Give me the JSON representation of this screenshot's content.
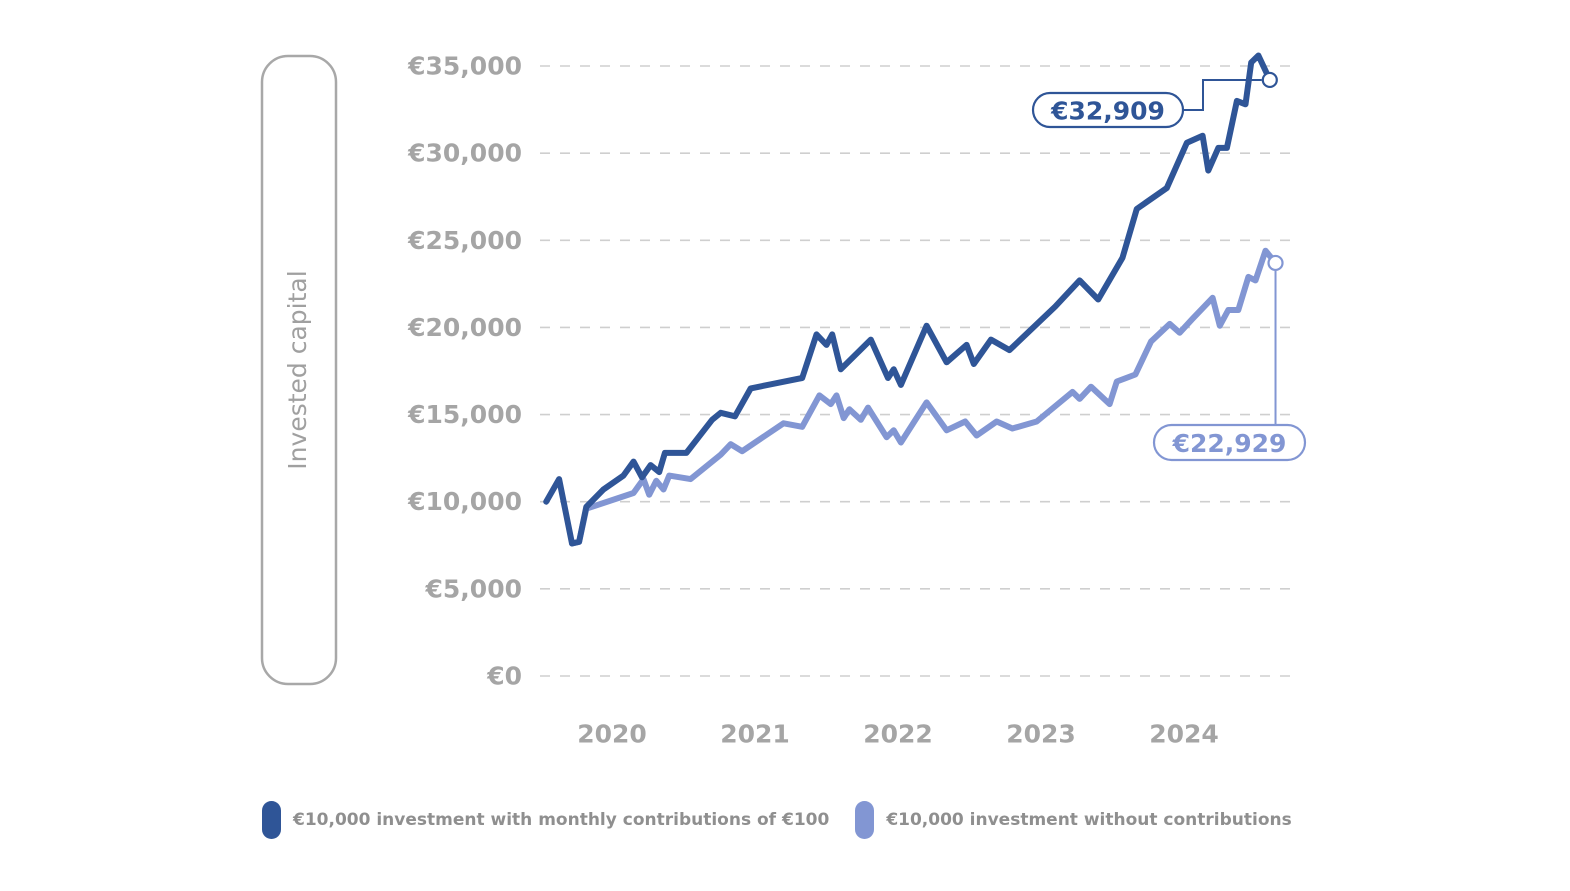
{
  "chart_data": {
    "type": "line",
    "ylabel": "Invested capital",
    "xlabel": "",
    "ylim": [
      0,
      35000
    ],
    "xlim": [
      2019.5,
      2024.75
    ],
    "y_ticks": [
      0,
      5000,
      10000,
      15000,
      20000,
      25000,
      30000,
      35000
    ],
    "y_tick_labels": [
      "€0",
      "€5,000",
      "€10,000",
      "€15,000",
      "€20,000",
      "€25,000",
      "€30,000",
      "€35,000"
    ],
    "x_ticks": [
      2020,
      2021,
      2022,
      2023,
      2024
    ],
    "x_tick_labels": [
      "2020",
      "2021",
      "2022",
      "2023",
      "2024"
    ],
    "grid": "horizontal dashed",
    "legend_position": "bottom",
    "series": [
      {
        "name": "€10,000 investment with monthly contributions of €100",
        "color": "#2f5597",
        "end_label": "€32,909",
        "points": [
          [
            2019.54,
            10000
          ],
          [
            2019.63,
            11300
          ],
          [
            2019.72,
            7600
          ],
          [
            2019.77,
            7700
          ],
          [
            2019.82,
            9700
          ],
          [
            2019.94,
            10700
          ],
          [
            2020.08,
            11500
          ],
          [
            2020.15,
            12300
          ],
          [
            2020.21,
            11400
          ],
          [
            2020.27,
            12100
          ],
          [
            2020.33,
            11700
          ],
          [
            2020.37,
            12800
          ],
          [
            2020.52,
            12800
          ],
          [
            2020.7,
            14700
          ],
          [
            2020.76,
            15100
          ],
          [
            2020.86,
            14900
          ],
          [
            2020.97,
            16500
          ],
          [
            2021.33,
            17100
          ],
          [
            2021.43,
            19600
          ],
          [
            2021.5,
            19000
          ],
          [
            2021.54,
            19600
          ],
          [
            2021.6,
            17600
          ],
          [
            2021.81,
            19300
          ],
          [
            2021.93,
            17100
          ],
          [
            2021.97,
            17600
          ],
          [
            2022.02,
            16700
          ],
          [
            2022.2,
            20100
          ],
          [
            2022.34,
            18000
          ],
          [
            2022.48,
            19000
          ],
          [
            2022.53,
            17900
          ],
          [
            2022.65,
            19300
          ],
          [
            2022.78,
            18700
          ],
          [
            2023.1,
            21200
          ],
          [
            2023.27,
            22700
          ],
          [
            2023.4,
            21600
          ],
          [
            2023.57,
            24000
          ],
          [
            2023.67,
            26800
          ],
          [
            2023.88,
            28000
          ],
          [
            2024.02,
            30600
          ],
          [
            2024.13,
            31000
          ],
          [
            2024.17,
            29000
          ],
          [
            2024.24,
            30300
          ],
          [
            2024.3,
            30300
          ],
          [
            2024.37,
            33000
          ],
          [
            2024.43,
            32800
          ],
          [
            2024.47,
            35200
          ],
          [
            2024.52,
            35600
          ],
          [
            2024.6,
            34200
          ]
        ]
      },
      {
        "name": "€10,000 investment without contributions",
        "color": "#8296d3",
        "end_label": "€22,929",
        "points": [
          [
            2019.72,
            7600
          ],
          [
            2019.77,
            7700
          ],
          [
            2019.82,
            9600
          ],
          [
            2020.15,
            10500
          ],
          [
            2020.22,
            11300
          ],
          [
            2020.26,
            10400
          ],
          [
            2020.31,
            11200
          ],
          [
            2020.36,
            10700
          ],
          [
            2020.4,
            11500
          ],
          [
            2020.55,
            11300
          ],
          [
            2020.76,
            12700
          ],
          [
            2020.83,
            13300
          ],
          [
            2020.91,
            12900
          ],
          [
            2021.2,
            14500
          ],
          [
            2021.33,
            14300
          ],
          [
            2021.45,
            16100
          ],
          [
            2021.53,
            15600
          ],
          [
            2021.57,
            16100
          ],
          [
            2021.62,
            14800
          ],
          [
            2021.66,
            15300
          ],
          [
            2021.74,
            14700
          ],
          [
            2021.79,
            15400
          ],
          [
            2021.92,
            13700
          ],
          [
            2021.97,
            14100
          ],
          [
            2022.02,
            13400
          ],
          [
            2022.2,
            15700
          ],
          [
            2022.34,
            14100
          ],
          [
            2022.47,
            14600
          ],
          [
            2022.55,
            13800
          ],
          [
            2022.69,
            14600
          ],
          [
            2022.8,
            14200
          ],
          [
            2022.97,
            14600
          ],
          [
            2023.22,
            16300
          ],
          [
            2023.27,
            15900
          ],
          [
            2023.35,
            16600
          ],
          [
            2023.48,
            15600
          ],
          [
            2023.53,
            16900
          ],
          [
            2023.66,
            17300
          ],
          [
            2023.77,
            19200
          ],
          [
            2023.9,
            20200
          ],
          [
            2023.97,
            19700
          ],
          [
            2024.06,
            20500
          ],
          [
            2024.2,
            21700
          ],
          [
            2024.25,
            20100
          ],
          [
            2024.31,
            21000
          ],
          [
            2024.38,
            21000
          ],
          [
            2024.45,
            22900
          ],
          [
            2024.5,
            22700
          ],
          [
            2024.57,
            24400
          ],
          [
            2024.64,
            23700
          ]
        ]
      }
    ]
  }
}
